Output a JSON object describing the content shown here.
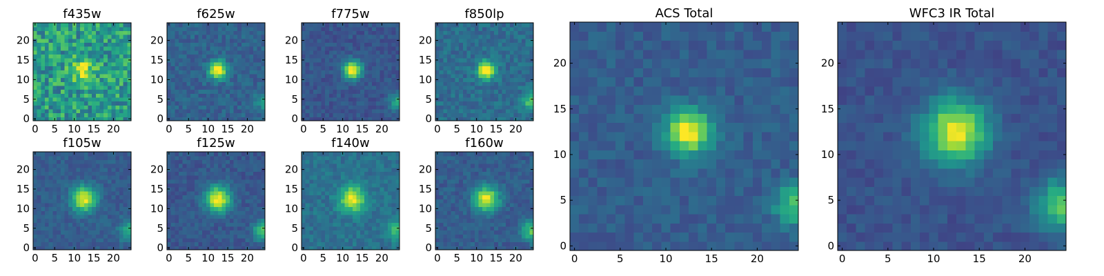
{
  "chart_data": [
    {
      "type": "heatmap",
      "title": "f435w",
      "x_ticks": [
        "0",
        "5",
        "10",
        "15",
        "20"
      ],
      "y_ticks": [
        "0",
        "5",
        "10",
        "15",
        "20"
      ],
      "xlim": [
        0,
        24
      ],
      "ylim": [
        0,
        24
      ],
      "colormap": "viridis",
      "source": {
        "x": 12.5,
        "y": 12.5,
        "width": 2.2,
        "peak": 0.35
      },
      "companion": {
        "x": 24,
        "y": 4.5,
        "width": 1.5,
        "peak": 0.0
      },
      "noise": 0.42,
      "base": 0.55,
      "seed": 11
    },
    {
      "type": "heatmap",
      "title": "f625w",
      "x_ticks": [
        "0",
        "5",
        "10",
        "15",
        "20"
      ],
      "y_ticks": [
        "0",
        "5",
        "10",
        "15",
        "20"
      ],
      "xlim": [
        0,
        24
      ],
      "ylim": [
        0,
        24
      ],
      "colormap": "viridis",
      "source": {
        "x": 12.5,
        "y": 12.5,
        "width": 1.6,
        "peak": 0.75
      },
      "companion": {
        "x": 24,
        "y": 4.5,
        "width": 1.5,
        "peak": 0.25
      },
      "noise": 0.16,
      "base": 0.32,
      "seed": 23
    },
    {
      "type": "heatmap",
      "title": "f775w",
      "x_ticks": [
        "0",
        "5",
        "10",
        "15",
        "20"
      ],
      "y_ticks": [
        "0",
        "5",
        "10",
        "15",
        "20"
      ],
      "xlim": [
        0,
        24
      ],
      "ylim": [
        0,
        24
      ],
      "colormap": "viridis",
      "source": {
        "x": 12.5,
        "y": 12.5,
        "width": 1.6,
        "peak": 0.78
      },
      "companion": {
        "x": 24,
        "y": 4.5,
        "width": 1.5,
        "peak": 0.35
      },
      "noise": 0.13,
      "base": 0.27,
      "seed": 37
    },
    {
      "type": "heatmap",
      "title": "f850lp",
      "x_ticks": [
        "0",
        "5",
        "10",
        "15",
        "20"
      ],
      "y_ticks": [
        "0",
        "5",
        "10",
        "15",
        "20"
      ],
      "xlim": [
        0,
        24
      ],
      "ylim": [
        0,
        24
      ],
      "colormap": "viridis",
      "source": {
        "x": 12.5,
        "y": 12.5,
        "width": 1.6,
        "peak": 0.72
      },
      "companion": {
        "x": 24,
        "y": 4.5,
        "width": 1.5,
        "peak": 0.4
      },
      "noise": 0.17,
      "base": 0.36,
      "seed": 41
    },
    {
      "type": "heatmap",
      "title": "f105w",
      "x_ticks": [
        "0",
        "5",
        "10",
        "15",
        "20"
      ],
      "y_ticks": [
        "0",
        "5",
        "10",
        "15",
        "20"
      ],
      "xlim": [
        0,
        24
      ],
      "ylim": [
        0,
        24
      ],
      "colormap": "viridis",
      "source": {
        "x": 12.5,
        "y": 12.5,
        "width": 2.2,
        "peak": 0.68
      },
      "companion": {
        "x": 24,
        "y": 4.5,
        "width": 1.8,
        "peak": 0.35
      },
      "noise": 0.13,
      "base": 0.3,
      "seed": 53
    },
    {
      "type": "heatmap",
      "title": "f125w",
      "x_ticks": [
        "0",
        "5",
        "10",
        "15",
        "20"
      ],
      "y_ticks": [
        "0",
        "5",
        "10",
        "15",
        "20"
      ],
      "xlim": [
        0,
        24
      ],
      "ylim": [
        0,
        24
      ],
      "colormap": "viridis",
      "source": {
        "x": 12.5,
        "y": 12.5,
        "width": 2.3,
        "peak": 0.72
      },
      "companion": {
        "x": 24,
        "y": 4.5,
        "width": 1.8,
        "peak": 0.45
      },
      "noise": 0.13,
      "base": 0.28,
      "seed": 67
    },
    {
      "type": "heatmap",
      "title": "f140w",
      "x_ticks": [
        "0",
        "5",
        "10",
        "15",
        "20"
      ],
      "y_ticks": [
        "0",
        "5",
        "10",
        "15",
        "20"
      ],
      "xlim": [
        0,
        24
      ],
      "ylim": [
        0,
        24
      ],
      "colormap": "viridis",
      "source": {
        "x": 12.5,
        "y": 12.5,
        "width": 2.3,
        "peak": 0.6
      },
      "companion": {
        "x": 24,
        "y": 4.5,
        "width": 1.8,
        "peak": 0.3
      },
      "noise": 0.15,
      "base": 0.38,
      "seed": 79
    },
    {
      "type": "heatmap",
      "title": "f160w",
      "x_ticks": [
        "0",
        "5",
        "10",
        "15",
        "20"
      ],
      "y_ticks": [
        "0",
        "5",
        "10",
        "15",
        "20"
      ],
      "xlim": [
        0,
        24
      ],
      "ylim": [
        0,
        24
      ],
      "colormap": "viridis",
      "source": {
        "x": 12.5,
        "y": 12.5,
        "width": 2.2,
        "peak": 0.7
      },
      "companion": {
        "x": 24,
        "y": 4.5,
        "width": 1.8,
        "peak": 0.45
      },
      "noise": 0.14,
      "base": 0.3,
      "seed": 83
    },
    {
      "type": "heatmap",
      "title": "ACS Total",
      "x_ticks": [
        "0",
        "5",
        "10",
        "15",
        "20"
      ],
      "y_ticks": [
        "0",
        "5",
        "10",
        "15",
        "20"
      ],
      "xlim": [
        0,
        24
      ],
      "ylim": [
        0,
        24
      ],
      "colormap": "viridis",
      "source": {
        "x": 12.5,
        "y": 12.5,
        "width": 1.7,
        "peak": 0.72
      },
      "companion": {
        "x": 24,
        "y": 4.5,
        "width": 1.5,
        "peak": 0.42
      },
      "noise": 0.13,
      "base": 0.3,
      "seed": 97
    },
    {
      "type": "heatmap",
      "title": "WFC3 IR Total",
      "x_ticks": [
        "0",
        "5",
        "10",
        "15",
        "20"
      ],
      "y_ticks": [
        "0",
        "5",
        "10",
        "15",
        "20"
      ],
      "xlim": [
        0,
        24
      ],
      "ylim": [
        0,
        24
      ],
      "colormap": "viridis",
      "source": {
        "x": 12.5,
        "y": 12.5,
        "width": 2.4,
        "peak": 0.72
      },
      "companion": {
        "x": 24,
        "y": 4.5,
        "width": 1.9,
        "peak": 0.5
      },
      "noise": 0.11,
      "base": 0.26,
      "seed": 101
    }
  ]
}
